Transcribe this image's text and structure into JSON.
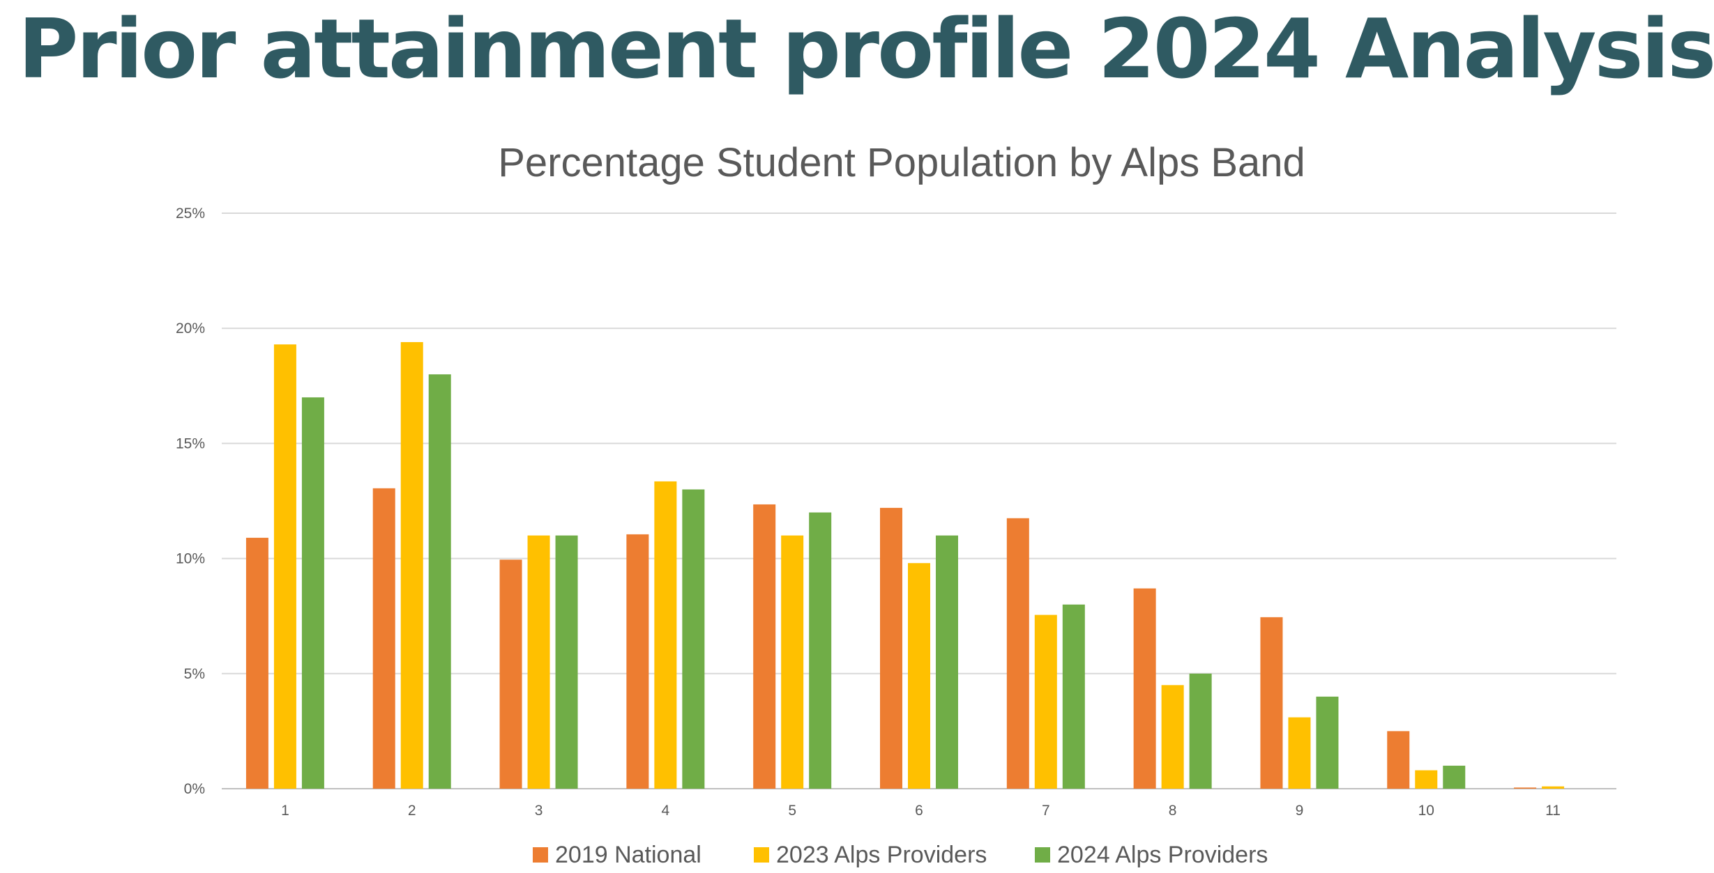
{
  "page": {
    "title": "Prior attainment profile 2024 Analysis",
    "title_color": "#2f5a62"
  },
  "chart_data": {
    "type": "bar",
    "title": "Percentage Student Population by Alps Band",
    "xlabel": "",
    "ylabel": "",
    "categories": [
      "1",
      "2",
      "3",
      "4",
      "5",
      "6",
      "7",
      "8",
      "9",
      "10",
      "11"
    ],
    "y_ticks": [
      "0%",
      "5%",
      "10%",
      "15%",
      "20%",
      "25%"
    ],
    "ylim": [
      0,
      25
    ],
    "grid": true,
    "legend_position": "bottom",
    "series": [
      {
        "name": "2019 National",
        "color": "#ed7d31",
        "values": [
          10.9,
          13.05,
          9.95,
          11.05,
          12.35,
          12.2,
          11.75,
          8.7,
          7.45,
          2.5,
          0.05
        ]
      },
      {
        "name": "2023 Alps Providers",
        "color": "#ffc000",
        "values": [
          19.3,
          19.4,
          11.0,
          13.35,
          11.0,
          9.8,
          7.55,
          4.5,
          3.1,
          0.8,
          0.1
        ]
      },
      {
        "name": "2024 Alps Providers",
        "color": "#70ad47",
        "values": [
          17.0,
          18.0,
          11.0,
          13.0,
          12.0,
          11.0,
          8.0,
          5.0,
          4.0,
          1.0,
          0.0
        ]
      }
    ]
  }
}
